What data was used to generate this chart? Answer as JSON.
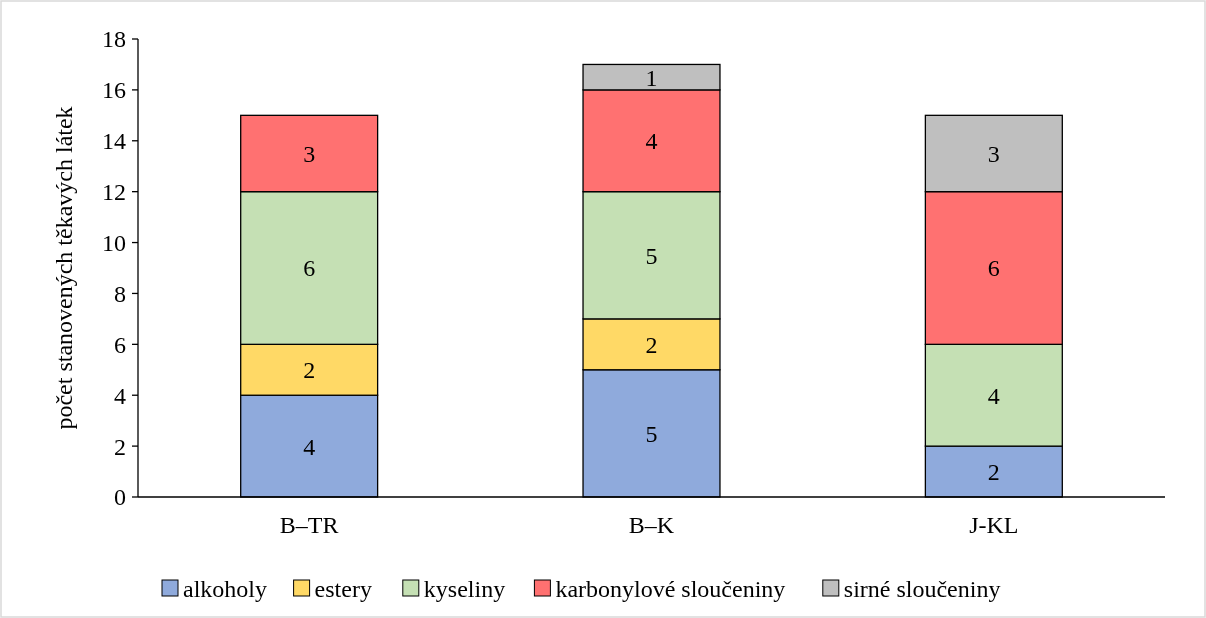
{
  "chart_data": {
    "type": "bar",
    "ylabel": "počet stanovených těkavých látek",
    "categories": [
      "B–TR",
      "B–K",
      "J-KL"
    ],
    "stacked": true,
    "ylim": [
      0,
      18
    ],
    "yticks": [
      0,
      2,
      4,
      6,
      8,
      10,
      12,
      14,
      16,
      18
    ],
    "grid": false,
    "legend": "bottom",
    "data_labels": true,
    "series": [
      {
        "name": "alkoholy",
        "color": "#8faadc",
        "values": [
          4,
          5,
          2
        ]
      },
      {
        "name": "estery",
        "color": "#ffd966",
        "values": [
          2,
          2,
          null
        ]
      },
      {
        "name": "kyseliny",
        "color": "#c5e0b4",
        "values": [
          6,
          5,
          4
        ]
      },
      {
        "name": "karbonylové sloučeniny",
        "color": "#ff7171",
        "values": [
          3,
          4,
          6
        ]
      },
      {
        "name": "sirné sloučeniny",
        "color": "#bfbfbf",
        "values": [
          null,
          1,
          3
        ]
      }
    ]
  }
}
